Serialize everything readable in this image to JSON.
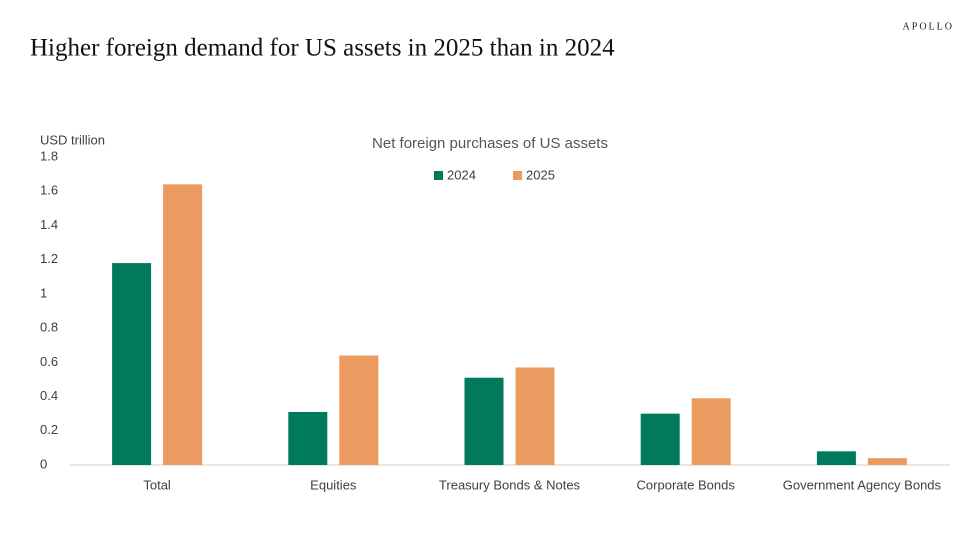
{
  "brand": "APOLLO",
  "chart_data": {
    "type": "bar",
    "title": "Higher foreign demand for US assets in 2025 than in 2024",
    "subtitle": "Net foreign purchases of US assets",
    "y_label": "USD trillion",
    "categories": [
      "Total",
      "Equities",
      "Treasury Bonds & Notes",
      "Corporate Bonds",
      "Government Agency Bonds"
    ],
    "series": [
      {
        "name": "2024",
        "color": "#00795c",
        "values": [
          1.18,
          0.31,
          0.51,
          0.3,
          0.08
        ]
      },
      {
        "name": "2025",
        "color": "#eb9b5f",
        "values": [
          1.64,
          0.64,
          0.57,
          0.39,
          0.04
        ]
      }
    ],
    "ylim": [
      0,
      1.8
    ],
    "yticks": [
      0,
      0.2,
      0.4,
      0.6,
      0.8,
      1,
      1.2,
      1.4,
      1.6,
      1.8
    ],
    "grid": false
  }
}
